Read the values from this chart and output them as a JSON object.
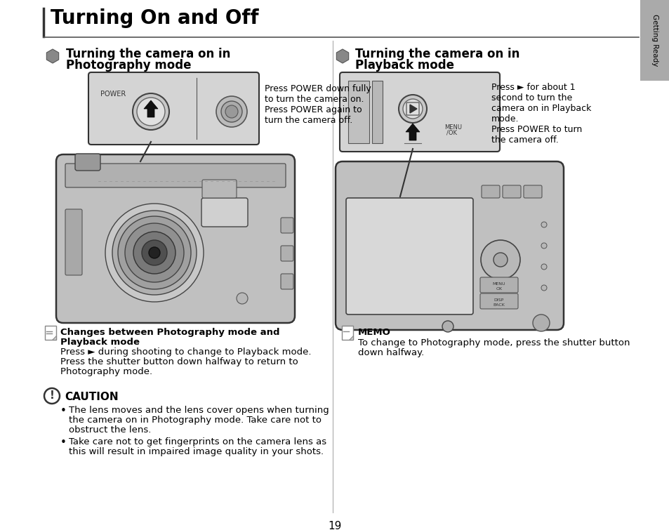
{
  "bg_color": "#ffffff",
  "title": "Turning On and Off",
  "left_section_title_line1": "Turning the camera on in",
  "left_section_title_line2": "Photography mode",
  "right_section_title_line1": "Turning the camera on in",
  "right_section_title_line2": "Playback mode",
  "left_desc": [
    "Press POWER down fully",
    "to turn the camera on.",
    "Press POWER again to",
    "turn the camera off."
  ],
  "right_desc": [
    "Press ► for about 1",
    "second to turn the",
    "camera on in Playback",
    "mode.",
    "Press POWER to turn",
    "the camera off."
  ],
  "note_left_title": "Changes between Photography mode and",
  "note_left_title2": "Playback mode",
  "note_left_body": [
    "Press ► during shooting to change to Playback mode.",
    "Press the shutter button down halfway to return to",
    "Photography mode."
  ],
  "caution_title": "CAUTION",
  "caution_bullet1": [
    "The lens moves and the lens cover opens when turning",
    "the camera on in Photography mode. Take care not to",
    "obstruct the lens."
  ],
  "caution_bullet2": [
    "Take care not to get fingerprints on the camera lens as",
    "this will result in impaired image quality in your shots."
  ],
  "memo_title": "MEMO",
  "memo_body": [
    "To change to Photography mode, press the shutter button",
    "down halfway."
  ],
  "page_number": "19",
  "sidebar_label": "Getting Ready",
  "sidebar_color": "#aaaaaa",
  "text_color": "#000000"
}
